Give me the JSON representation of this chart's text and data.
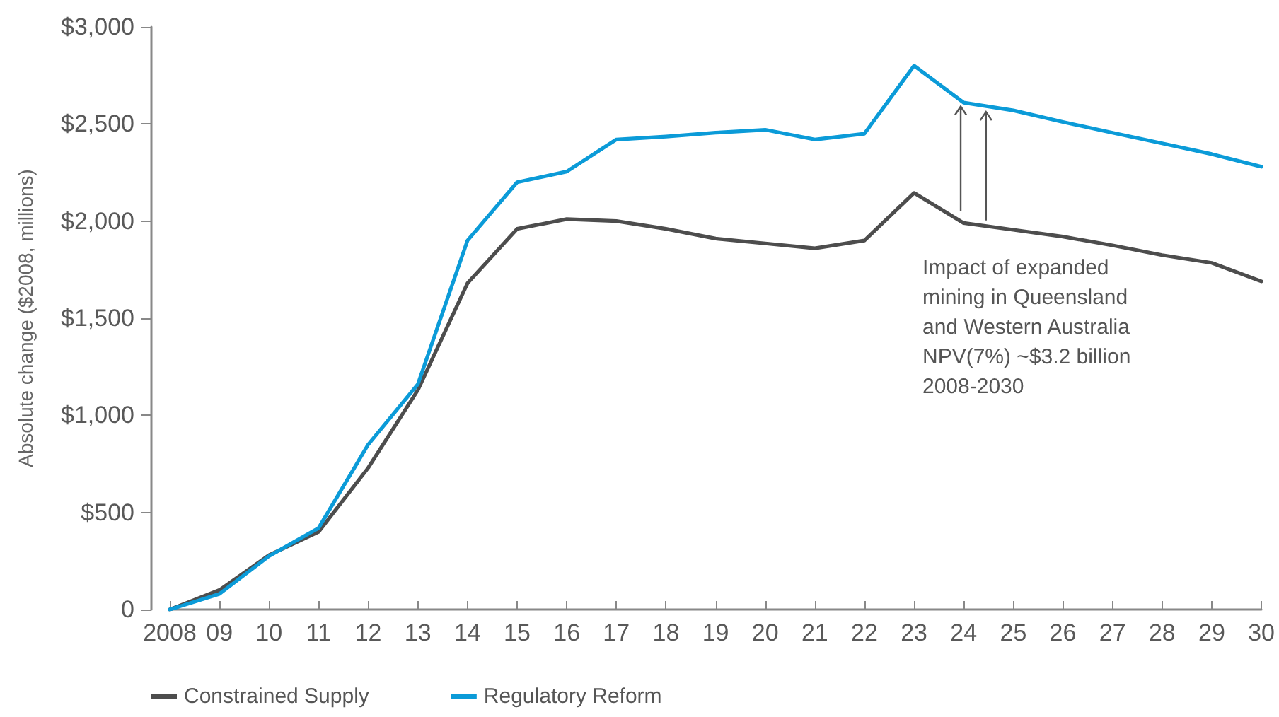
{
  "chart_data": {
    "type": "line",
    "ylabel": "Absolute change ($2008, millions)",
    "categories": [
      "2008",
      "09",
      "10",
      "11",
      "12",
      "13",
      "14",
      "15",
      "16",
      "17",
      "18",
      "19",
      "20",
      "21",
      "22",
      "23",
      "24",
      "25",
      "26",
      "27",
      "28",
      "29",
      "30"
    ],
    "series": [
      {
        "name": "Constrained Supply",
        "color": "#4d4d4d",
        "values": [
          0,
          100,
          280,
          400,
          730,
          1130,
          1680,
          1960,
          2010,
          2000,
          1960,
          1910,
          1885,
          1860,
          1900,
          2145,
          1990,
          1955,
          1920,
          1875,
          1825,
          1785,
          1690
        ]
      },
      {
        "name": "Regulatory Reform",
        "color": "#0b9bd8",
        "values": [
          0,
          80,
          275,
          420,
          850,
          1160,
          1900,
          2200,
          2255,
          2420,
          2435,
          2455,
          2470,
          2420,
          2450,
          2800,
          2610,
          2570,
          2510,
          2455,
          2400,
          2345,
          2280
        ]
      }
    ],
    "ylim": [
      0,
      3000
    ],
    "yticks": [
      0,
      {
        "value": 500,
        "label": "$500"
      },
      {
        "value": 1000,
        "label": "$1,000"
      },
      {
        "value": 1500,
        "label": "$1,500"
      },
      {
        "value": 2000,
        "label": "$2,000"
      },
      {
        "value": 2500,
        "label": "$2,500"
      },
      {
        "value": 3000,
        "label": "$3,000"
      }
    ],
    "grid": false,
    "legend": "bottom left",
    "marker": "none",
    "line_style": "solid",
    "annotations": [
      "Impact of expanded mining in Queensland and Western Australia NPV(7%) ~$3.2 billion 2008-2030"
    ]
  }
}
